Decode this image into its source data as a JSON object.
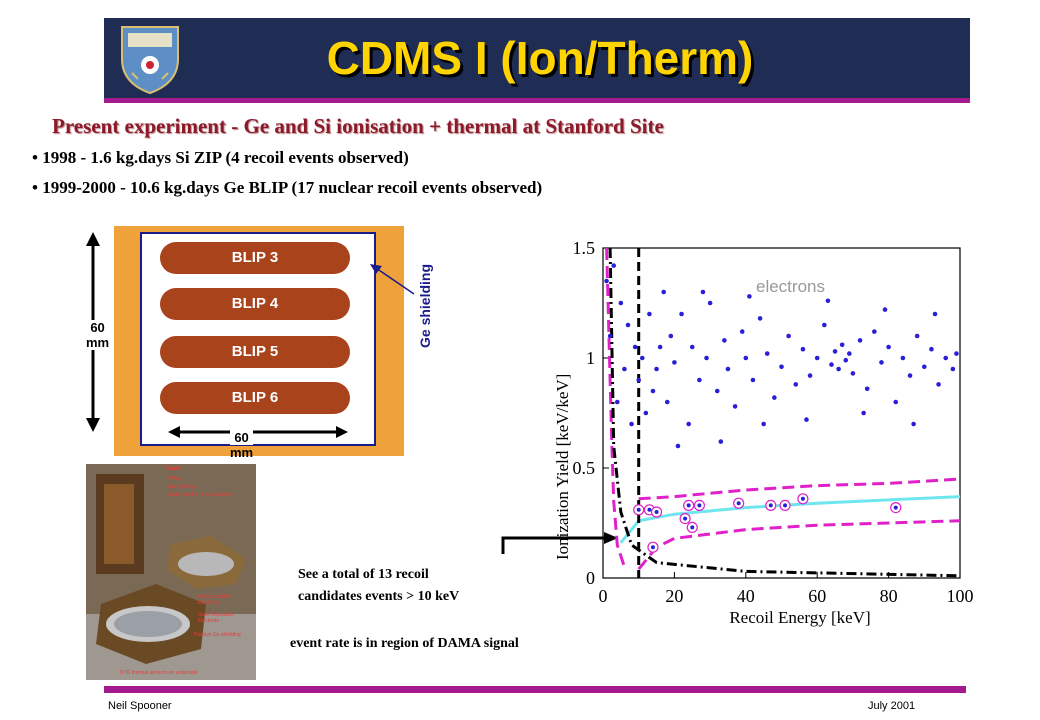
{
  "slide": {
    "title": "CDMS I (Ion/Therm)",
    "subtitle": "Present experiment - Ge and Si ionisation + thermal at Stanford Site",
    "bullets": [
      "• 1998 - 1.6 kg.days Si ZIP (4 recoil events observed)",
      "• 1999-2000 - 10.6 kg.days Ge BLIP (17 nuclear recoil events observed)"
    ],
    "callout_lines": [
      "See a total of 13 recoil",
      "candidates events > 10 keV"
    ],
    "dama_note": "event rate is in region of DAMA signal",
    "footer_left": "Neil Spooner",
    "footer_right": "July 2001"
  },
  "detector_diagram": {
    "blips": [
      "BLIP 3",
      "BLIP 4",
      "BLIP 5",
      "BLIP 6"
    ],
    "ge_shielding_label": "Ge shielding",
    "height_label": [
      "60",
      "mm"
    ],
    "width_label": [
      "60",
      "mm"
    ]
  },
  "photo_labels": {
    "tower": "Tower",
    "wiring": "Wiring",
    "heat_sinking": "heat sinking",
    "fets": "holds cold FETs for amplifiers",
    "inner": "Inner Ionization Electrode",
    "outer": "Outer Ionization Electrode",
    "passive": "Passive Ge shielding",
    "ntd": "NTD thermal sensors on underside"
  },
  "colors": {
    "banner": "#1f2d55",
    "title_text": "#ffd400",
    "accent_line": "#a21a8e",
    "subtitle": "#8b1a2a",
    "electron_points": "#2a1fd6",
    "band_lines": "#e020c8",
    "center_line": "#6fe6ee",
    "threshold": "#000000"
  },
  "chart_data": {
    "type": "scatter",
    "xlabel": "Recoil Energy [keV]",
    "ylabel": "Ionization Yield [keV/keV]",
    "xlim": [
      0,
      100
    ],
    "ylim": [
      0,
      1.5
    ],
    "xticks": [
      0,
      20,
      40,
      60,
      80,
      100
    ],
    "yticks": [
      0,
      0.5,
      1,
      1.5
    ],
    "annotation": "electrons",
    "nuclear_recoil_candidates": [
      {
        "x": 10,
        "y": 0.31
      },
      {
        "x": 13,
        "y": 0.31
      },
      {
        "x": 14,
        "y": 0.14
      },
      {
        "x": 15,
        "y": 0.3
      },
      {
        "x": 23,
        "y": 0.27
      },
      {
        "x": 24,
        "y": 0.33
      },
      {
        "x": 25,
        "y": 0.23
      },
      {
        "x": 27,
        "y": 0.33
      },
      {
        "x": 38,
        "y": 0.34
      },
      {
        "x": 47,
        "y": 0.33
      },
      {
        "x": 51,
        "y": 0.33
      },
      {
        "x": 56,
        "y": 0.36
      },
      {
        "x": 82,
        "y": 0.32
      }
    ],
    "electron_band_points": [
      {
        "x": 1,
        "y": 1.35
      },
      {
        "x": 2,
        "y": 1.1
      },
      {
        "x": 3,
        "y": 1.42
      },
      {
        "x": 4,
        "y": 0.8
      },
      {
        "x": 5,
        "y": 1.25
      },
      {
        "x": 6,
        "y": 0.95
      },
      {
        "x": 7,
        "y": 1.15
      },
      {
        "x": 8,
        "y": 0.7
      },
      {
        "x": 9,
        "y": 1.05
      },
      {
        "x": 10,
        "y": 0.9
      },
      {
        "x": 11,
        "y": 1.0
      },
      {
        "x": 12,
        "y": 0.75
      },
      {
        "x": 13,
        "y": 1.2
      },
      {
        "x": 14,
        "y": 0.85
      },
      {
        "x": 15,
        "y": 0.95
      },
      {
        "x": 16,
        "y": 1.05
      },
      {
        "x": 18,
        "y": 0.8
      },
      {
        "x": 19,
        "y": 1.1
      },
      {
        "x": 20,
        "y": 0.98
      },
      {
        "x": 22,
        "y": 1.2
      },
      {
        "x": 24,
        "y": 0.7
      },
      {
        "x": 25,
        "y": 1.05
      },
      {
        "x": 27,
        "y": 0.9
      },
      {
        "x": 29,
        "y": 1.0
      },
      {
        "x": 30,
        "y": 1.25
      },
      {
        "x": 32,
        "y": 0.85
      },
      {
        "x": 34,
        "y": 1.08
      },
      {
        "x": 35,
        "y": 0.95
      },
      {
        "x": 37,
        "y": 0.78
      },
      {
        "x": 39,
        "y": 1.12
      },
      {
        "x": 40,
        "y": 1.0
      },
      {
        "x": 42,
        "y": 0.9
      },
      {
        "x": 44,
        "y": 1.18
      },
      {
        "x": 46,
        "y": 1.02
      },
      {
        "x": 48,
        "y": 0.82
      },
      {
        "x": 50,
        "y": 0.96
      },
      {
        "x": 52,
        "y": 1.1
      },
      {
        "x": 54,
        "y": 0.88
      },
      {
        "x": 56,
        "y": 1.04
      },
      {
        "x": 58,
        "y": 0.92
      },
      {
        "x": 60,
        "y": 1.0
      },
      {
        "x": 62,
        "y": 1.15
      },
      {
        "x": 64,
        "y": 0.97
      },
      {
        "x": 65,
        "y": 1.03
      },
      {
        "x": 66,
        "y": 0.95
      },
      {
        "x": 67,
        "y": 1.06
      },
      {
        "x": 68,
        "y": 0.99
      },
      {
        "x": 69,
        "y": 1.02
      },
      {
        "x": 70,
        "y": 0.93
      },
      {
        "x": 72,
        "y": 1.08
      },
      {
        "x": 74,
        "y": 0.86
      },
      {
        "x": 76,
        "y": 1.12
      },
      {
        "x": 78,
        "y": 0.98
      },
      {
        "x": 80,
        "y": 1.05
      },
      {
        "x": 82,
        "y": 0.8
      },
      {
        "x": 84,
        "y": 1.0
      },
      {
        "x": 86,
        "y": 0.92
      },
      {
        "x": 88,
        "y": 1.1
      },
      {
        "x": 90,
        "y": 0.96
      },
      {
        "x": 92,
        "y": 1.04
      },
      {
        "x": 94,
        "y": 0.88
      },
      {
        "x": 96,
        "y": 1.0
      },
      {
        "x": 98,
        "y": 0.95
      },
      {
        "x": 99,
        "y": 1.02
      },
      {
        "x": 21,
        "y": 0.6
      },
      {
        "x": 33,
        "y": 0.62
      },
      {
        "x": 45,
        "y": 0.7
      },
      {
        "x": 57,
        "y": 0.72
      },
      {
        "x": 73,
        "y": 0.75
      },
      {
        "x": 87,
        "y": 0.7
      },
      {
        "x": 17,
        "y": 1.3
      },
      {
        "x": 28,
        "y": 1.3
      },
      {
        "x": 41,
        "y": 1.28
      },
      {
        "x": 63,
        "y": 1.26
      },
      {
        "x": 79,
        "y": 1.22
      },
      {
        "x": 93,
        "y": 1.2
      }
    ],
    "nuclear_band_center": [
      {
        "x": 5,
        "y": 0.16
      },
      {
        "x": 10,
        "y": 0.26
      },
      {
        "x": 20,
        "y": 0.29
      },
      {
        "x": 40,
        "y": 0.32
      },
      {
        "x": 60,
        "y": 0.34
      },
      {
        "x": 80,
        "y": 0.355
      },
      {
        "x": 100,
        "y": 0.37
      }
    ],
    "nuclear_band_upper": [
      {
        "x": 10,
        "y": 0.36
      },
      {
        "x": 20,
        "y": 0.37
      },
      {
        "x": 40,
        "y": 0.4
      },
      {
        "x": 60,
        "y": 0.42
      },
      {
        "x": 80,
        "y": 0.43
      },
      {
        "x": 100,
        "y": 0.45
      }
    ],
    "nuclear_band_lower": [
      {
        "x": 10,
        "y": 0.04
      },
      {
        "x": 15,
        "y": 0.14
      },
      {
        "x": 20,
        "y": 0.18
      },
      {
        "x": 40,
        "y": 0.22
      },
      {
        "x": 60,
        "y": 0.24
      },
      {
        "x": 80,
        "y": 0.25
      },
      {
        "x": 100,
        "y": 0.26
      }
    ],
    "electron_band_lower_edge": [
      {
        "x": 1,
        "y": 1.5
      },
      {
        "x": 1.5,
        "y": 1.2
      },
      {
        "x": 2,
        "y": 0.9
      },
      {
        "x": 2.5,
        "y": 0.6
      },
      {
        "x": 3,
        "y": 0.35
      },
      {
        "x": 4,
        "y": 0.15
      },
      {
        "x": 6,
        "y": 0.05
      }
    ],
    "ionization_threshold": [
      {
        "x": 2,
        "y": 1.5
      },
      {
        "x": 3,
        "y": 0.6
      },
      {
        "x": 5,
        "y": 0.3
      },
      {
        "x": 8,
        "y": 0.15
      },
      {
        "x": 15,
        "y": 0.07
      },
      {
        "x": 40,
        "y": 0.03
      },
      {
        "x": 100,
        "y": 0.01
      }
    ],
    "energy_threshold_x": 10
  }
}
